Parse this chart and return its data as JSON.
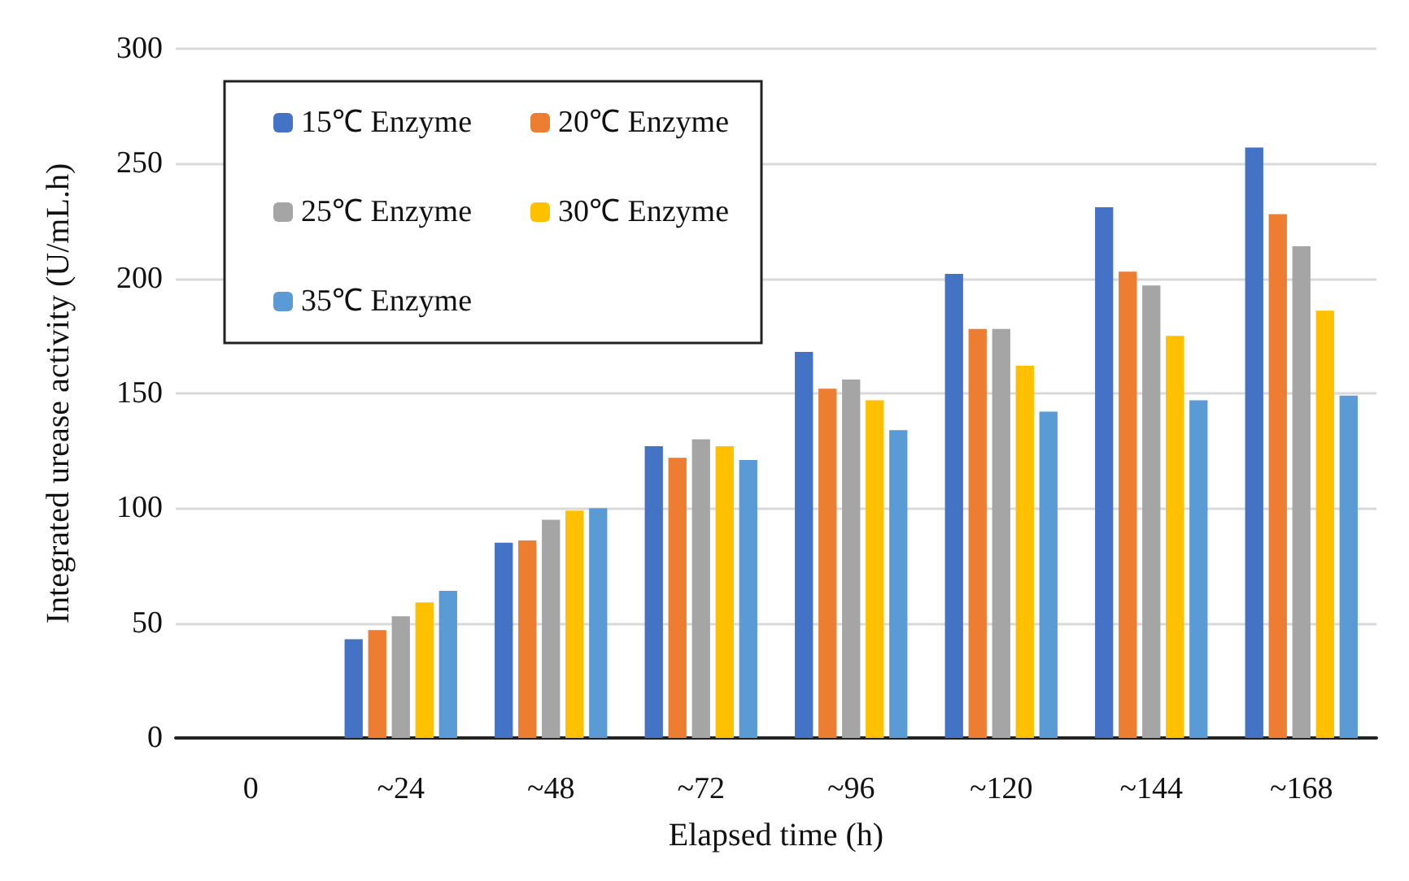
{
  "chart_data": {
    "type": "bar",
    "xlabel": "Elapsed time (h)",
    "ylabel": "Integrated urease activity (U/mL.h)",
    "categories": [
      "0",
      "~24",
      "~48",
      "~72",
      "~96",
      "~120",
      "~144",
      "~168"
    ],
    "series": [
      {
        "name": "15℃ Enzyme",
        "color": "#4472c4",
        "values": [
          0,
          43,
          85,
          127,
          168,
          202,
          231,
          257
        ]
      },
      {
        "name": "20℃ Enzyme",
        "color": "#ed7d31",
        "values": [
          0,
          47,
          86,
          122,
          152,
          178,
          203,
          228
        ]
      },
      {
        "name": "25℃ Enzyme",
        "color": "#a5a5a5",
        "values": [
          0,
          53,
          95,
          130,
          156,
          178,
          197,
          214
        ]
      },
      {
        "name": "30℃ Enzyme",
        "color": "#ffc000",
        "values": [
          0,
          59,
          99,
          127,
          147,
          162,
          175,
          186
        ]
      },
      {
        "name": "35℃ Enzyme",
        "color": "#5b9bd5",
        "values": [
          0,
          64,
          100,
          121,
          134,
          142,
          147,
          149
        ]
      }
    ],
    "ylim": [
      0,
      300
    ],
    "yticks": [
      0,
      50,
      100,
      150,
      200,
      250,
      300
    ],
    "grid": "y",
    "legend": "top left"
  }
}
